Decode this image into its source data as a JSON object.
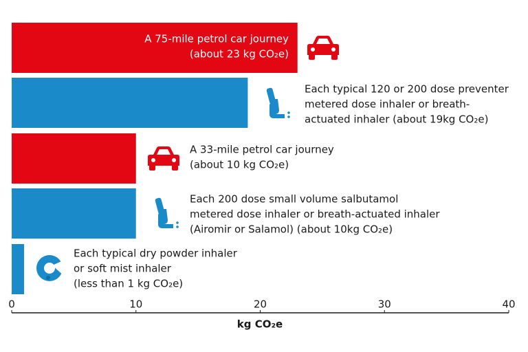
{
  "chart_data": {
    "type": "bar",
    "orientation": "horizontal",
    "categories": [
      [
        "A 75-mile petrol car journey",
        "(about 23 kg CO₂e)"
      ],
      [
        "Each typical 120 or 200 dose preventer",
        "metered dose inhaler or breath-",
        "actuated inhaler (about 19kg CO₂e)"
      ],
      [
        "A 33-mile petrol car journey",
        "(about 10 kg CO₂e)"
      ],
      [
        "Each 200 dose small volume salbutamol",
        "metered dose inhaler or breath-actuated inhaler",
        "(Airomir or Salamol) (about 10kg CO₂e)"
      ],
      [
        "Each typical dry powder inhaler",
        "or soft mist inhaler",
        "(less than 1 kg CO₂e)"
      ]
    ],
    "values": [
      23,
      19,
      10,
      10,
      1
    ],
    "colors": [
      "#e30613",
      "#1b8ac8",
      "#e30613",
      "#1b8ac8",
      "#1b8ac8"
    ],
    "xlim": [
      0,
      40
    ],
    "xticks": [
      0,
      10,
      20,
      30,
      40
    ],
    "xlabel": "kg CO₂e"
  }
}
